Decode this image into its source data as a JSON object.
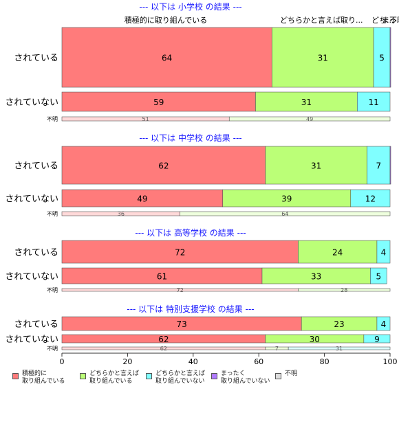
{
  "chart_data": {
    "type": "bar",
    "orientation": "horizontal",
    "stacked": true,
    "xlim": [
      0,
      100
    ],
    "xticks": [
      0,
      20,
      40,
      60,
      80,
      100
    ],
    "legend_position": "bottom",
    "categories": [
      "積極的に\n取り組んでいる",
      "どちらかと言えば\n取り組んでいる",
      "どちらかと言えば\n取り組んでいない",
      "まったく\n取り組んでいない",
      "不明"
    ],
    "colors": [
      "#ff7b7b",
      "#bbff77",
      "#80ffff",
      "#b07bff",
      "#dddddd"
    ],
    "pale_colors": [
      "#ffd9d9",
      "#eeffdd",
      "#ddffff",
      "#eeddff",
      "#f2f2f2"
    ],
    "top_labels": [
      "積極的に取り組んでいる",
      "どちらかと言えば取り...",
      "どち...",
      "まっ...",
      "不明"
    ],
    "groups": [
      {
        "title": "--- 以下は 小学校 の結果 ---",
        "rows": [
          {
            "label": "されている",
            "values": [
              64,
              31,
              5,
              0.5,
              0
            ],
            "labels": [
              "64",
              "31",
              "5",
              "",
              ""
            ]
          },
          {
            "label": "されていない",
            "values": [
              59,
              31,
              11,
              0,
              0
            ],
            "labels": [
              "59",
              "31",
              "11",
              "",
              ""
            ]
          },
          {
            "label": "不明",
            "values": [
              51,
              49,
              0,
              0,
              0
            ],
            "labels": [
              "51",
              "49",
              "",
              "",
              ""
            ]
          }
        ]
      },
      {
        "title": "--- 以下は 中学校 の結果 ---",
        "rows": [
          {
            "label": "されている",
            "values": [
              62,
              31,
              7,
              0.5,
              0
            ],
            "labels": [
              "62",
              "31",
              "7",
              "",
              ""
            ]
          },
          {
            "label": "されていない",
            "values": [
              49,
              39,
              12,
              0,
              0
            ],
            "labels": [
              "49",
              "39",
              "12",
              "",
              ""
            ]
          },
          {
            "label": "不明",
            "values": [
              36,
              64,
              0,
              0,
              0
            ],
            "labels": [
              "36",
              "64",
              "",
              "",
              ""
            ]
          }
        ]
      },
      {
        "title": "--- 以下は 高等学校 の結果 ---",
        "rows": [
          {
            "label": "されている",
            "values": [
              72,
              24,
              4,
              0,
              0
            ],
            "labels": [
              "72",
              "24",
              "4",
              "",
              ""
            ]
          },
          {
            "label": "されていない",
            "values": [
              61,
              33,
              5,
              0,
              0
            ],
            "labels": [
              "61",
              "33",
              "5",
              "",
              ""
            ]
          },
          {
            "label": "不明",
            "values": [
              72,
              28,
              0,
              0,
              0
            ],
            "labels": [
              "72",
              "28",
              "",
              "",
              ""
            ]
          }
        ]
      },
      {
        "title": "--- 以下は 特別支援学校 の結果 ---",
        "rows": [
          {
            "label": "されている",
            "values": [
              73,
              23,
              4,
              0,
              0
            ],
            "labels": [
              "73",
              "23",
              "4",
              "",
              ""
            ]
          },
          {
            "label": "されていない",
            "values": [
              62,
              30,
              9,
              0,
              0
            ],
            "labels": [
              "62",
              "30",
              "9",
              "",
              ""
            ]
          },
          {
            "label": "不明",
            "values": [
              62,
              7,
              31,
              0,
              0
            ],
            "labels": [
              "62",
              "7",
              "31",
              "",
              ""
            ]
          }
        ]
      }
    ]
  }
}
